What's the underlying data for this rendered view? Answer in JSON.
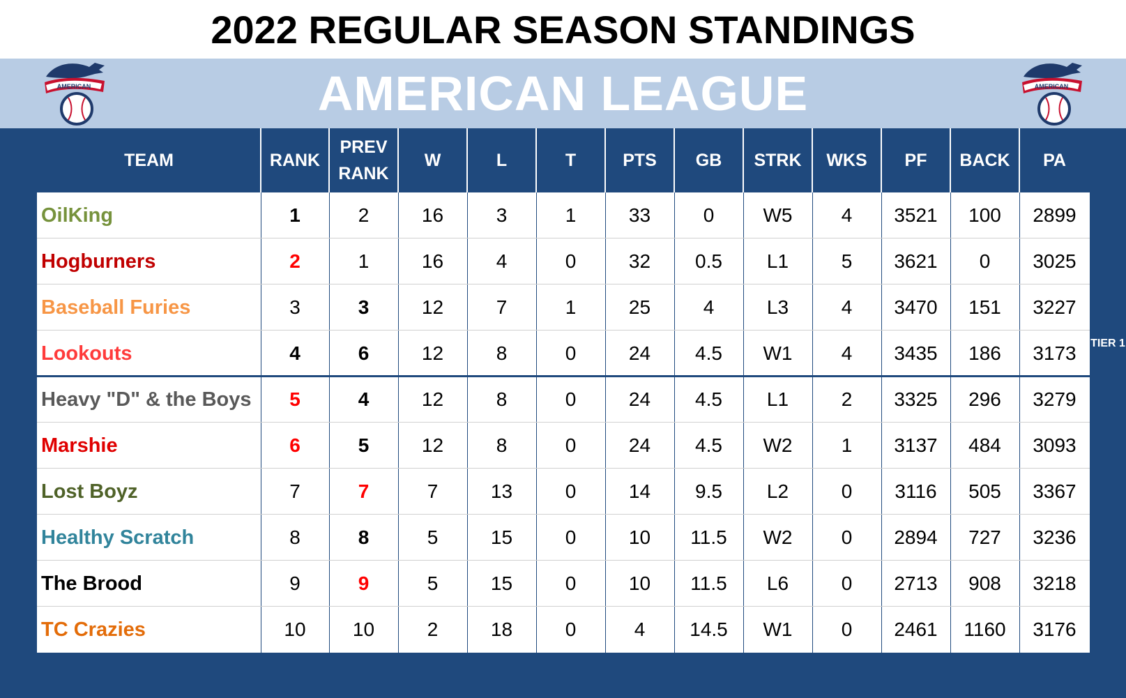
{
  "title": "2022 REGULAR SEASON STANDINGS",
  "league": "AMERICAN LEAGUE",
  "logo_text": "AMERICAN",
  "colors": {
    "header_bg": "#1f497d",
    "band_bg": "#b8cce4",
    "highlight_red": "#ff0000"
  },
  "columns": [
    "TEAM",
    "RANK",
    "PREV RANK",
    "W",
    "L",
    "T",
    "PTS",
    "GB",
    "STRK",
    "WKS",
    "PF",
    "BACK",
    "PA"
  ],
  "tier": "TIER 1",
  "rows": [
    {
      "team": "OilKing",
      "color": "#76923c",
      "rank": "1",
      "rank_style": "bold",
      "prev": "2",
      "prev_style": "",
      "w": "16",
      "l": "3",
      "t": "1",
      "pts": "33",
      "gb": "0",
      "strk": "W5",
      "wks": "4",
      "pf": "3521",
      "back": "100",
      "pa": "2899"
    },
    {
      "team": "Hogburners",
      "color": "#c00000",
      "rank": "2",
      "rank_style": "red",
      "prev": "1",
      "prev_style": "",
      "w": "16",
      "l": "4",
      "t": "0",
      "pts": "32",
      "gb": "0.5",
      "strk": "L1",
      "wks": "5",
      "pf": "3621",
      "back": "0",
      "pa": "3025"
    },
    {
      "team": "Baseball Furies",
      "color": "#f79646",
      "rank": "3",
      "rank_style": "",
      "prev": "3",
      "prev_style": "bold",
      "w": "12",
      "l": "7",
      "t": "1",
      "pts": "25",
      "gb": "4",
      "strk": "L3",
      "wks": "4",
      "pf": "3470",
      "back": "151",
      "pa": "3227"
    },
    {
      "team": "Lookouts",
      "color": "#ff3b3b",
      "rank": "4",
      "rank_style": "bold",
      "prev": "6",
      "prev_style": "bold",
      "w": "12",
      "l": "8",
      "t": "0",
      "pts": "24",
      "gb": "4.5",
      "strk": "W1",
      "wks": "4",
      "pf": "3435",
      "back": "186",
      "pa": "3173"
    },
    {
      "team": "Heavy \"D\" & the Boys",
      "color": "#595959",
      "rank": "5",
      "rank_style": "red",
      "prev": "4",
      "prev_style": "bold",
      "w": "12",
      "l": "8",
      "t": "0",
      "pts": "24",
      "gb": "4.5",
      "strk": "L1",
      "wks": "2",
      "pf": "3325",
      "back": "296",
      "pa": "3279"
    },
    {
      "team": "Marshie",
      "color": "#e00000",
      "rank": "6",
      "rank_style": "red",
      "prev": "5",
      "prev_style": "bold",
      "w": "12",
      "l": "8",
      "t": "0",
      "pts": "24",
      "gb": "4.5",
      "strk": "W2",
      "wks": "1",
      "pf": "3137",
      "back": "484",
      "pa": "3093"
    },
    {
      "team": "Lost Boyz",
      "color": "#4f6228",
      "rank": "7",
      "rank_style": "",
      "prev": "7",
      "prev_style": "red",
      "w": "7",
      "l": "13",
      "t": "0",
      "pts": "14",
      "gb": "9.5",
      "strk": "L2",
      "wks": "0",
      "pf": "3116",
      "back": "505",
      "pa": "3367"
    },
    {
      "team": "Healthy Scratch",
      "color": "#31849b",
      "rank": "8",
      "rank_style": "",
      "prev": "8",
      "prev_style": "bold",
      "w": "5",
      "l": "15",
      "t": "0",
      "pts": "10",
      "gb": "11.5",
      "strk": "W2",
      "wks": "0",
      "pf": "2894",
      "back": "727",
      "pa": "3236"
    },
    {
      "team": "The Brood",
      "color": "#000000",
      "rank": "9",
      "rank_style": "",
      "prev": "9",
      "prev_style": "red",
      "w": "5",
      "l": "15",
      "t": "0",
      "pts": "10",
      "gb": "11.5",
      "strk": "L6",
      "wks": "0",
      "pf": "2713",
      "back": "908",
      "pa": "3218"
    },
    {
      "team": "TC Crazies",
      "color": "#e36c09",
      "rank": "10",
      "rank_style": "",
      "prev": "10",
      "prev_style": "",
      "w": "2",
      "l": "18",
      "t": "0",
      "pts": "4",
      "gb": "14.5",
      "strk": "W1",
      "wks": "0",
      "pf": "2461",
      "back": "1160",
      "pa": "3176"
    }
  ]
}
